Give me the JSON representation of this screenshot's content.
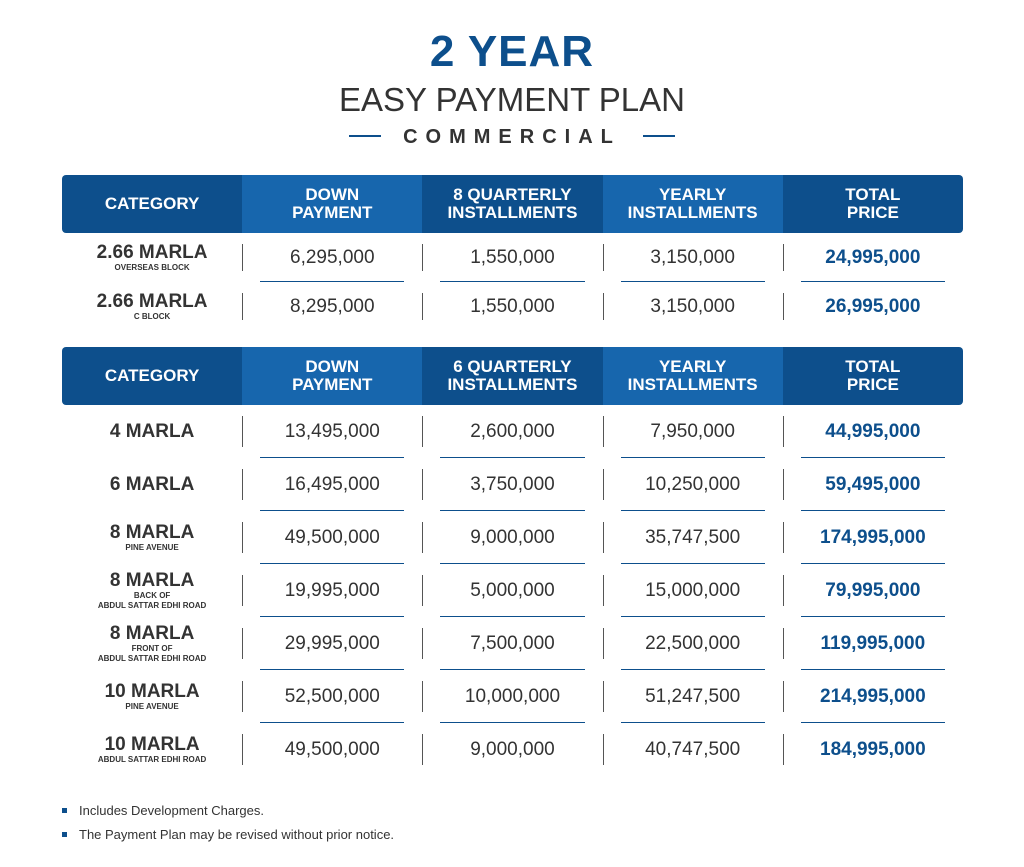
{
  "header": {
    "year": "2 YEAR",
    "plan": "EASY PAYMENT PLAN",
    "sub": "COMMERCIAL"
  },
  "table1": {
    "headers": [
      "CATEGORY",
      "DOWN\nPAYMENT",
      "8 QUARTERLY\nINSTALLMENTS",
      "YEARLY\nINSTALLMENTS",
      "TOTAL\nPRICE"
    ],
    "rows": [
      {
        "cat": "2.66 MARLA",
        "sub": "OVERSEAS BLOCK",
        "down": "6,295,000",
        "quarterly": "1,550,000",
        "yearly": "3,150,000",
        "total": "24,995,000"
      },
      {
        "cat": "2.66 MARLA",
        "sub": "C BLOCK",
        "down": "8,295,000",
        "quarterly": "1,550,000",
        "yearly": "3,150,000",
        "total": "26,995,000"
      }
    ]
  },
  "table2": {
    "headers": [
      "CATEGORY",
      "DOWN\nPAYMENT",
      "6 QUARTERLY\nINSTALLMENTS",
      "YEARLY\nINSTALLMENTS",
      "TOTAL\nPRICE"
    ],
    "rows": [
      {
        "cat": "4 MARLA",
        "sub": "",
        "down": "13,495,000",
        "quarterly": "2,600,000",
        "yearly": "7,950,000",
        "total": "44,995,000"
      },
      {
        "cat": "6 MARLA",
        "sub": "",
        "down": "16,495,000",
        "quarterly": "3,750,000",
        "yearly": "10,250,000",
        "total": "59,495,000"
      },
      {
        "cat": "8 MARLA",
        "sub": "PINE AVENUE",
        "down": "49,500,000",
        "quarterly": "9,000,000",
        "yearly": "35,747,500",
        "total": "174,995,000"
      },
      {
        "cat": "8 MARLA",
        "sub": "BACK OF\nABDUL SATTAR EDHI ROAD",
        "down": "19,995,000",
        "quarterly": "5,000,000",
        "yearly": "15,000,000",
        "total": "79,995,000"
      },
      {
        "cat": "8 MARLA",
        "sub": "FRONT OF\nABDUL SATTAR EDHI ROAD",
        "down": "29,995,000",
        "quarterly": "7,500,000",
        "yearly": "22,500,000",
        "total": "119,995,000"
      },
      {
        "cat": "10 MARLA",
        "sub": "PINE AVENUE",
        "down": "52,500,000",
        "quarterly": "10,000,000",
        "yearly": "51,247,500",
        "total": "214,995,000"
      },
      {
        "cat": "10 MARLA",
        "sub": "ABDUL SATTAR EDHI ROAD",
        "down": "49,500,000",
        "quarterly": "9,000,000",
        "yearly": "40,747,500",
        "total": "184,995,000"
      }
    ]
  },
  "notes": [
    "Includes Development Charges.",
    "The Payment Plan may be revised without prior notice."
  ]
}
